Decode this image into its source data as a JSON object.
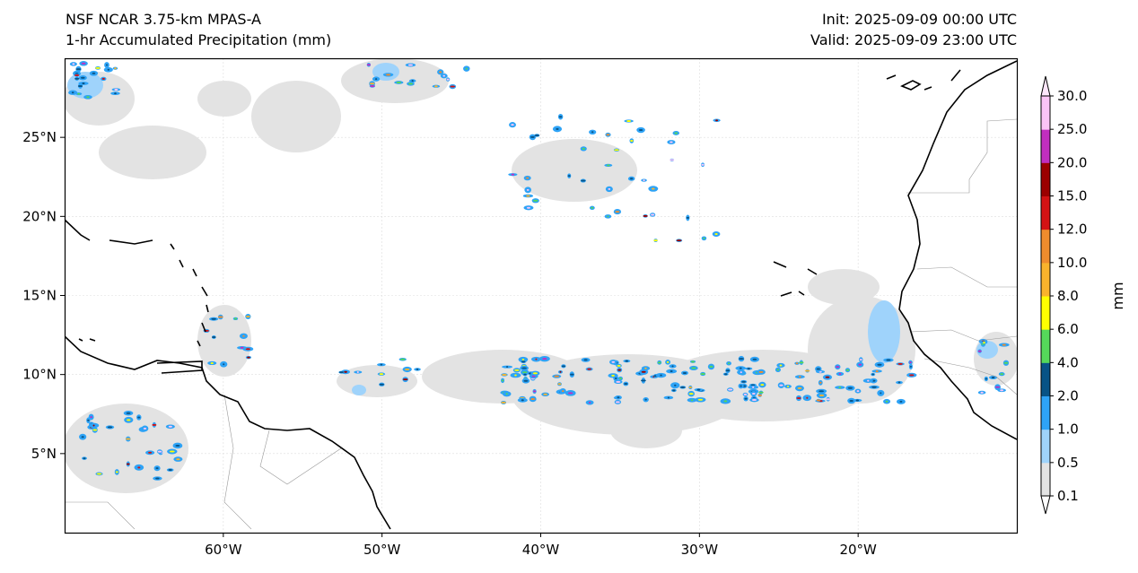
{
  "header": {
    "model": "NSF NCAR 3.75-km MPAS-A",
    "field": "1-hr Accumulated Precipitation (mm)",
    "init": "Init: 2025-09-09 00:00 UTC",
    "valid": "Valid: 2025-09-09 23:00 UTC"
  },
  "map": {
    "extent": {
      "lon": [
        -70,
        -10
      ],
      "lat": [
        0,
        30
      ]
    },
    "lon_ticks": [
      {
        "value": -60,
        "label": "60°W"
      },
      {
        "value": -50,
        "label": "50°W"
      },
      {
        "value": -40,
        "label": "40°W"
      },
      {
        "value": -30,
        "label": "30°W"
      },
      {
        "value": -20,
        "label": "20°W"
      }
    ],
    "lat_ticks": [
      {
        "value": 25,
        "label": "25°N"
      },
      {
        "value": 20,
        "label": "20°N"
      },
      {
        "value": 15,
        "label": "15°N"
      },
      {
        "value": 10,
        "label": "10°N"
      },
      {
        "value": 5,
        "label": "5°N"
      }
    ]
  },
  "colorbar": {
    "label": "mm",
    "ticks": [
      "0.1",
      "0.5",
      "1.0",
      "2.0",
      "4.0",
      "6.0",
      "8.0",
      "10.0",
      "12.0",
      "15.0",
      "20.0",
      "25.0",
      "30.0"
    ],
    "colors": [
      "#e3e3e3",
      "#9fd3fb",
      "#2ea3f6",
      "#085386",
      "#55d85a",
      "#ffff00",
      "#f9b32c",
      "#ef8c2d",
      "#d31214",
      "#9b0000",
      "#c12ebf",
      "#fbc4f6"
    ],
    "under_color": "#ffffff",
    "over_color": "#fde6fb"
  }
}
